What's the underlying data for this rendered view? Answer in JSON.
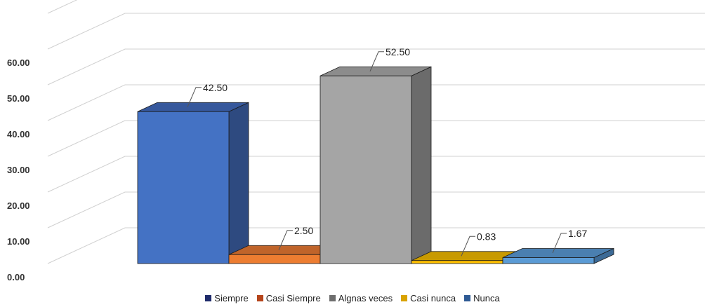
{
  "chart_data": {
    "type": "bar",
    "title": "",
    "xlabel": "",
    "ylabel": "",
    "ylim": [
      0,
      60
    ],
    "yticks": [
      "0.00",
      "10.00",
      "20.00",
      "30.00",
      "40.00",
      "50.00",
      "60.00"
    ],
    "grid": true,
    "three_d": true,
    "legend_position": "bottom",
    "categories": [
      "Siempre",
      "Casi Siempre",
      "Algnas veces",
      "Casi nunca",
      "Nunca"
    ],
    "values": [
      42.5,
      2.5,
      52.5,
      0.83,
      1.67
    ],
    "data_labels": [
      "42.50",
      "2.50",
      "52.50",
      "0.83",
      "1.67"
    ],
    "legend_colors": [
      "#1f2b6b",
      "#b5451b",
      "#6e6e6e",
      "#d9a300",
      "#2e5a94"
    ],
    "bar_colors": {
      "front": [
        "#4472c4",
        "#ed7d31",
        "#a5a5a5",
        "#ffc000",
        "#5b9bd5"
      ],
      "side": [
        "#2e4a80",
        "#a3541f",
        "#6b6b6b",
        "#a67f00",
        "#3c6a96"
      ],
      "top": [
        "#36589c",
        "#c0642a",
        "#8c8c8c",
        "#c89a00",
        "#4a7fb0"
      ]
    }
  }
}
